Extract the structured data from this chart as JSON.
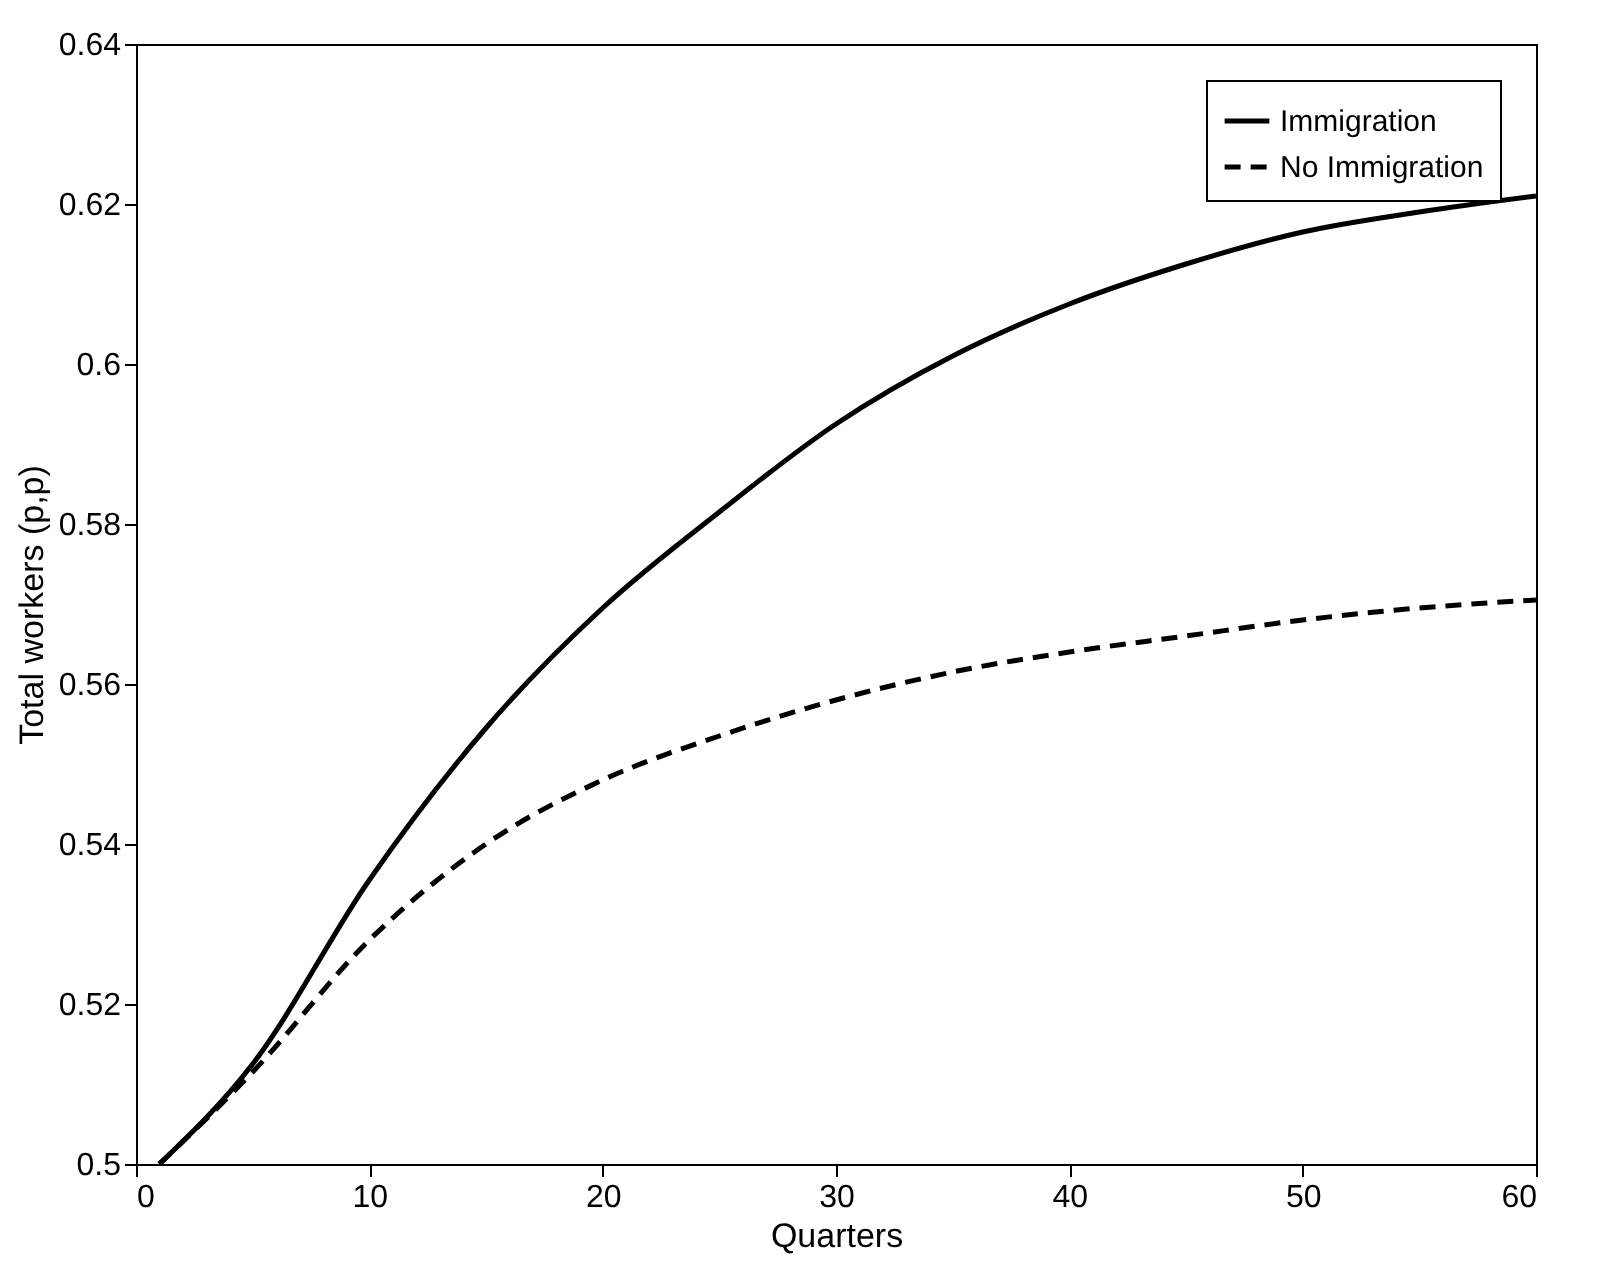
{
  "chart_data": {
    "type": "line",
    "xlabel": "Quarters",
    "ylabel": "Total workers (p,p)",
    "xlim": [
      0,
      60
    ],
    "xticks": [
      0,
      10,
      20,
      30,
      40,
      50,
      60
    ],
    "ylim": [
      0.5,
      0.64
    ],
    "yticks": [
      0.5,
      0.52,
      0.54,
      0.56,
      0.58,
      0.6,
      0.62,
      0.64
    ],
    "grid": false,
    "legend": "top right",
    "marker": "none",
    "x": [
      1,
      5,
      10,
      15,
      20,
      25,
      30,
      35,
      40,
      45,
      50,
      55,
      60
    ],
    "series": [
      {
        "name": "Immigration",
        "color": "#000000",
        "line_style": "solid",
        "values": [
          0.5,
          0.5125,
          0.5355,
          0.5545,
          0.5695,
          0.5815,
          0.5925,
          0.601,
          0.6075,
          0.6125,
          0.6165,
          0.619,
          0.621
        ]
      },
      {
        "name": "No Immigration",
        "color": "#000000",
        "line_style": "dashed",
        "values": [
          0.5,
          0.5115,
          0.528,
          0.54,
          0.548,
          0.5535,
          0.558,
          0.5615,
          0.564,
          0.566,
          0.568,
          0.5695,
          0.5705
        ]
      }
    ]
  }
}
